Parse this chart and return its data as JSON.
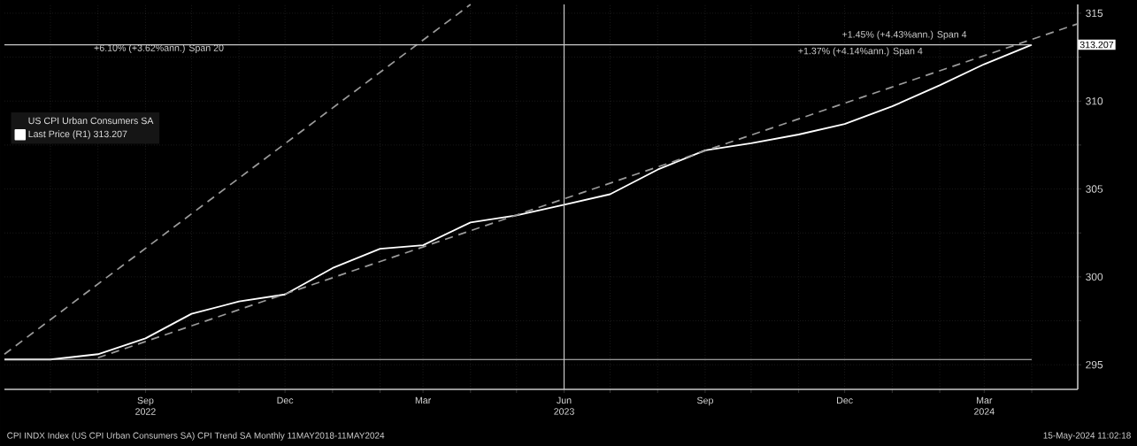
{
  "chart_data": {
    "type": "line",
    "legend_title": "US CPI Urban Consumers SA",
    "x": [
      "2022-06",
      "2022-07",
      "2022-08",
      "2022-09",
      "2022-10",
      "2022-11",
      "2022-12",
      "2023-01",
      "2023-02",
      "2023-03",
      "2023-04",
      "2023-05",
      "2023-06",
      "2023-07",
      "2023-08",
      "2023-09",
      "2023-10",
      "2023-11",
      "2023-12",
      "2024-01",
      "2024-02",
      "2024-03",
      "2024-04"
    ],
    "series": [
      {
        "name": "Last Price  (R1) 313.207",
        "color": "#ffffff",
        "line_style": "solid",
        "values": [
          295.3,
          295.3,
          295.6,
          296.5,
          297.9,
          298.6,
          299.0,
          300.5,
          301.6,
          301.8,
          303.1,
          303.5,
          304.1,
          304.7,
          306.1,
          307.2,
          307.6,
          308.1,
          308.7,
          309.7,
          310.9,
          312.1,
          313.207
        ]
      },
      {
        "color": "#9a9a9a",
        "line_style": "dashed",
        "x": [
          "2022-08",
          "2024-05"
        ],
        "values": [
          295.4,
          314.4
        ]
      },
      {
        "color": "#9a9a9a",
        "line_style": "dashed",
        "x": [
          "2022-06",
          "2023-04"
        ],
        "values": [
          295.6,
          315.5
        ]
      }
    ],
    "xlim": [
      "2022-06",
      "2024-05"
    ],
    "ylim": [
      293.6,
      315.5
    ],
    "xticks": [
      {
        "value": "2022-07",
        "label": null
      },
      {
        "value": "2022-08",
        "label": null
      },
      {
        "value": "2022-09",
        "label": "Sep 2022"
      },
      {
        "value": "2022-10",
        "label": null
      },
      {
        "value": "2022-11",
        "label": null
      },
      {
        "value": "2022-12",
        "label": "Dec"
      },
      {
        "value": "2023-01",
        "label": null
      },
      {
        "value": "2023-02",
        "label": null
      },
      {
        "value": "2023-03",
        "label": "Mar"
      },
      {
        "value": "2023-04",
        "label": null
      },
      {
        "value": "2023-05",
        "label": null
      },
      {
        "value": "2023-06",
        "label": "Jun 2023"
      },
      {
        "value": "2023-07",
        "label": null
      },
      {
        "value": "2023-08",
        "label": null
      },
      {
        "value": "2023-09",
        "label": "Sep"
      },
      {
        "value": "2023-10",
        "label": null
      },
      {
        "value": "2023-11",
        "label": null
      },
      {
        "value": "2023-12",
        "label": "Dec"
      },
      {
        "value": "2024-01",
        "label": null
      },
      {
        "value": "2024-02",
        "label": null
      },
      {
        "value": "2024-03",
        "label": "Mar 2024"
      },
      {
        "value": "2024-04",
        "label": null
      }
    ],
    "yticks": [
      295,
      {
        "value": 297.5,
        "label": null
      },
      300,
      {
        "value": 302.5,
        "label": null
      },
      305,
      {
        "value": 307.5,
        "label": null
      },
      310,
      {
        "value": 312.5,
        "label": null
      },
      315
    ],
    "grid": true,
    "legend": "top left",
    "ref_lines": [
      {
        "axis": "y",
        "value": 295.3,
        "color": "#c8c8c8"
      },
      {
        "axis": "y",
        "value": 313.207,
        "color": "#c8c8c8"
      },
      {
        "axis": "x",
        "value": "2023-06",
        "color": "#c8c8c8"
      }
    ],
    "annotations": [
      "+6.10% (+3.62%ann.) Span 20",
      "+1.45% (+4.43%ann.) Span 4",
      "+1.37% (+4.14%ann.) Span 4",
      "313.207",
      "CPI INDX Index (US CPI Urban Consumers SA) CPI Trend SA  Monthly 11MAY2018-11MAY2024",
      "15-May-2024 11:02:18"
    ]
  }
}
